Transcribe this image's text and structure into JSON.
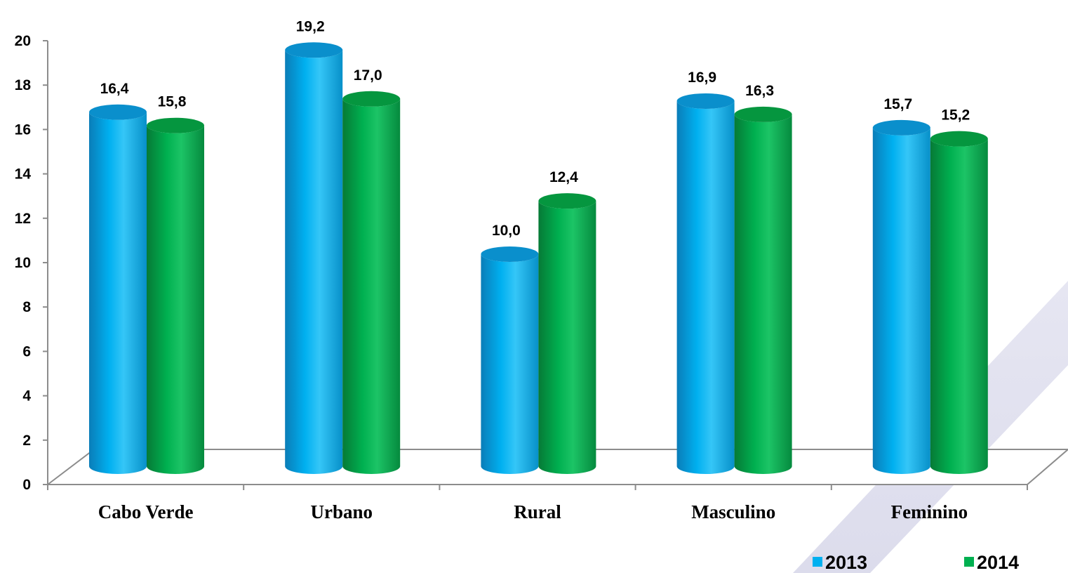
{
  "chart_data": {
    "type": "bar",
    "categories": [
      "Cabo Verde",
      "Urbano",
      "Rural",
      "Masculino",
      "Feminino"
    ],
    "series": [
      {
        "name": "2013",
        "values": [
          16.4,
          19.2,
          10.0,
          16.9,
          15.7
        ],
        "labels": [
          "16,4",
          "19,2",
          "10,0",
          "16,9",
          "15,7"
        ],
        "color": "#00B0F0"
      },
      {
        "name": "2014",
        "values": [
          15.8,
          17.0,
          12.4,
          16.3,
          15.2
        ],
        "labels": [
          "15,8",
          "17,0",
          "12,4",
          "16,3",
          "15,2"
        ],
        "color": "#00B050"
      }
    ],
    "yticks": [
      "0",
      "2",
      "4",
      "6",
      "8",
      "10",
      "12",
      "14",
      "16",
      "18",
      "20"
    ],
    "ylim": [
      0,
      20
    ],
    "legend_position": "bottom-right",
    "grid": false
  }
}
